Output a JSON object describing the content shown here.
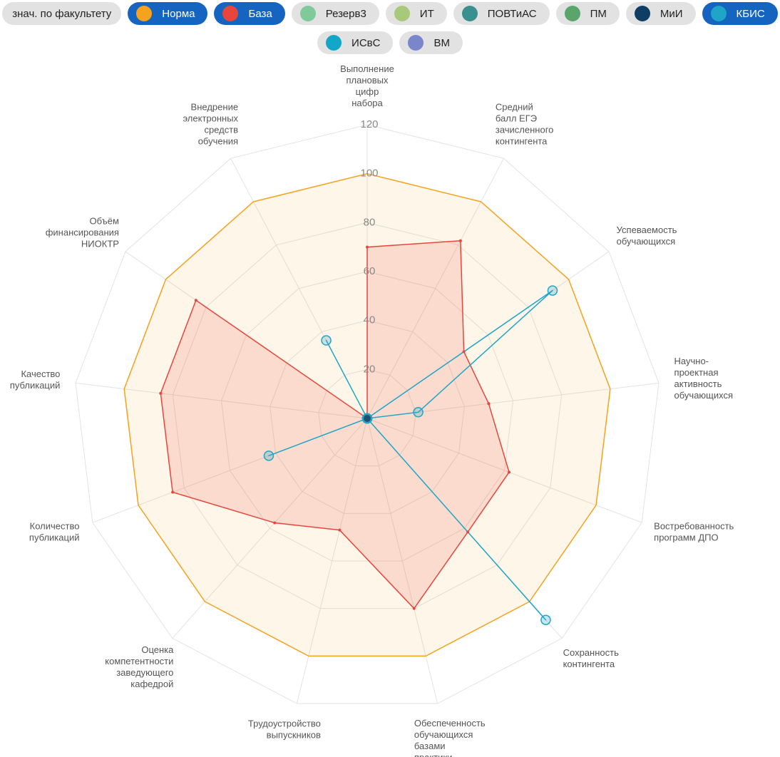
{
  "chart_data": {
    "type": "radar",
    "legend_toggle": "знач. по факультету",
    "categories": [
      "Выполнение плановых цифр набора",
      "Средний балл ЕГЭ зачисленного контингента",
      "Успеваемость обучающихся",
      "Научно-проектная активность обучающихся",
      "Востребованность программ ДПО",
      "Сохранность контингента",
      "Обеспеченность обучающихся базами практики",
      "Трудоустройство выпускников",
      "Оценка компетентности заведующего кафедрой",
      "Количество публикаций",
      "Качество публикаций",
      "Объём финансирования НИОКТР",
      "Внедрение электронных средств обучения"
    ],
    "rlim": [
      0,
      120
    ],
    "rticks": [
      20,
      40,
      60,
      80,
      100,
      120
    ],
    "grid": true,
    "series": [
      {
        "name": "Норма",
        "color": "#f5a21e",
        "visible": true,
        "values": [
          100,
          100,
          100,
          100,
          100,
          100,
          100,
          100,
          100,
          100,
          100,
          100,
          100
        ]
      },
      {
        "name": "База",
        "color": "#e8463c",
        "visible": true,
        "values": [
          70,
          82,
          48,
          50,
          62,
          62,
          80,
          47,
          57,
          85,
          85,
          85,
          0
        ]
      },
      {
        "name": "Резерв3",
        "color": "#7fc99b",
        "visible": false
      },
      {
        "name": "ИТ",
        "color": "#a9c97a",
        "visible": false
      },
      {
        "name": "ПОВТиАС",
        "color": "#3a8f8f",
        "visible": false
      },
      {
        "name": "ПМ",
        "color": "#5ba56b",
        "visible": false
      },
      {
        "name": "МиИ",
        "color": "#0f3d63",
        "visible": false
      },
      {
        "name": "КБИС",
        "color": "#1ea5c8",
        "visible": true,
        "values": [
          0,
          0,
          92,
          21,
          0,
          110,
          0,
          0,
          0,
          43,
          0,
          0,
          36
        ]
      },
      {
        "name": "ИСвС",
        "color": "#12a6c9",
        "visible": false
      },
      {
        "name": "ВМ",
        "color": "#7986cb",
        "visible": false
      }
    ]
  }
}
